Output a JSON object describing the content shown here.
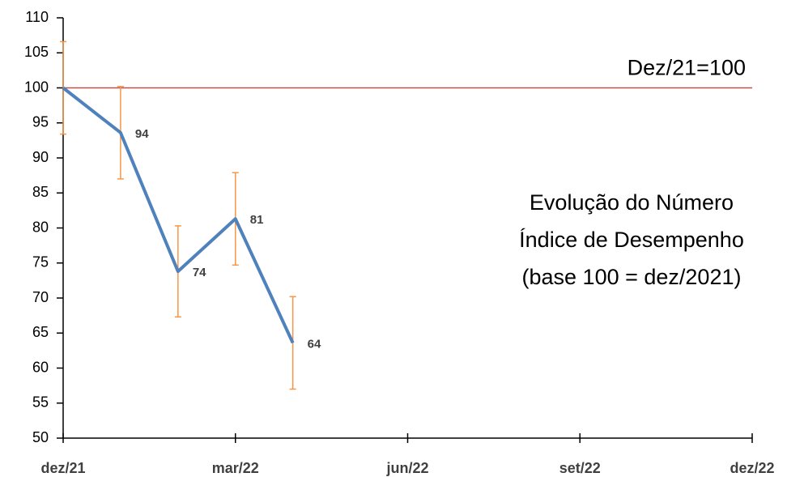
{
  "chart_data": {
    "type": "line",
    "x": [
      0,
      1,
      2,
      3,
      4
    ],
    "values": [
      100,
      93.6,
      73.8,
      81.3,
      63.6
    ],
    "value_labels": [
      null,
      "94",
      "74",
      "81",
      "64"
    ],
    "errors": [
      6.6,
      6.6,
      6.5,
      6.6,
      6.6
    ],
    "color": "#4f81bd",
    "error_color": "#f79646",
    "xlim": [
      0,
      12
    ],
    "xticks": [
      {
        "value": 0,
        "label": "dez/21"
      },
      {
        "value": 3,
        "label": "mar/22"
      },
      {
        "value": 6,
        "label": "jun/22"
      },
      {
        "value": 9,
        "label": "set/22"
      },
      {
        "value": 12,
        "label": "dez/22"
      }
    ],
    "ylim": [
      50,
      110
    ],
    "yticks": [
      50,
      55,
      60,
      65,
      70,
      75,
      80,
      85,
      90,
      95,
      100,
      105,
      110
    ],
    "reference_line": {
      "value": 100,
      "label": "Dez/21=100",
      "color": "#c0504d"
    },
    "annotation": [
      "Evolução do Número",
      "Índice de Desempenho",
      "(base 100 = dez/2021)"
    ]
  }
}
